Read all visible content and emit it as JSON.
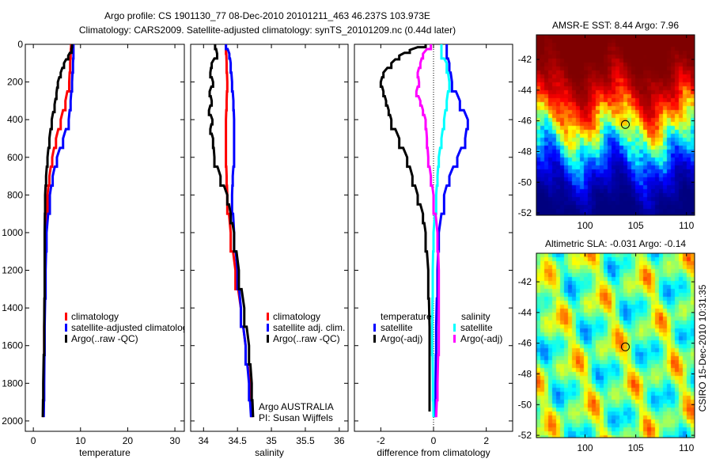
{
  "title_line1": "Argo profile: CS 1901130_77 08-Dec-2010 20101211_463 46.237S 103.973E",
  "title_line2": "Climatology: CARS2009. Satellite-adjusted climatology: synTS_20101209.nc (0.44d later)",
  "credit": "CSIRO 15-Dec-2010 10:31:35",
  "colors": {
    "climatology": "#ff0000",
    "satellite": "#0000ff",
    "argo": "#000000",
    "sal_satellite": "#00ffff",
    "sal_argo": "#ff00ff"
  },
  "chart_data": [
    {
      "type": "line",
      "id": "temp",
      "xlabel": "temperature",
      "ylabel": "",
      "xlim": [
        -1.7,
        32
      ],
      "ylim": [
        2055,
        0
      ],
      "xticks": [
        0,
        10,
        20,
        30
      ],
      "yticks": [
        0,
        200,
        400,
        600,
        800,
        1000,
        1200,
        1400,
        1600,
        1800,
        2000
      ],
      "legend": [
        "climatology",
        "satellite-adjusted climatology",
        "Argo(..raw -QC)"
      ],
      "series": [
        {
          "name": "climatology",
          "color": "#ff0000",
          "depth": [
            0,
            50,
            100,
            200,
            300,
            400,
            500,
            600,
            700,
            800,
            1000,
            1200,
            1500,
            1800,
            1980
          ],
          "values": [
            8.0,
            7.9,
            7.8,
            7.6,
            6.8,
            5.8,
            4.8,
            4.0,
            3.4,
            3.0,
            2.6,
            2.5,
            2.3,
            2.2,
            2.1
          ]
        },
        {
          "name": "satellite-adjusted climatology",
          "color": "#0000ff",
          "depth": [
            0,
            50,
            100,
            200,
            300,
            400,
            500,
            600,
            700,
            800,
            1000,
            1200,
            1500,
            1800,
            1980
          ],
          "values": [
            8.5,
            8.5,
            8.4,
            8.2,
            7.9,
            7.5,
            6.3,
            5.0,
            4.1,
            3.5,
            2.8,
            2.6,
            2.4,
            2.3,
            2.2
          ]
        },
        {
          "name": "Argo(..raw -QC)",
          "color": "#000000",
          "depth": [
            0,
            30,
            60,
            100,
            150,
            200,
            260,
            320,
            400,
            500,
            600,
            700,
            800,
            1000,
            1200,
            1500,
            1800,
            1980
          ],
          "values": [
            8.2,
            8.1,
            7.4,
            6.5,
            5.8,
            5.2,
            4.9,
            4.5,
            3.9,
            3.4,
            3.0,
            2.7,
            2.5,
            2.4,
            2.4,
            2.3,
            2.1,
            2.0
          ]
        }
      ]
    },
    {
      "type": "line",
      "id": "sal",
      "xlabel": "salinity",
      "ylabel": "",
      "xlim": [
        33.81,
        36.13
      ],
      "ylim": [
        2055,
        0
      ],
      "xticks": [
        34,
        34.5,
        35,
        35.5,
        36
      ],
      "yticks": [
        0,
        200,
        400,
        600,
        800,
        1000,
        1200,
        1400,
        1600,
        1800,
        2000
      ],
      "legend": [
        "climatology",
        "satellite adj. clim.",
        "Argo(..raw -QC)"
      ],
      "annotation": [
        "Argo AUSTRALIA",
        "PI: Susan Wijffels"
      ],
      "series": [
        {
          "name": "climatology",
          "color": "#ff0000",
          "depth": [
            0,
            100,
            200,
            300,
            400,
            500,
            600,
            700,
            800,
            1000,
            1200,
            1400,
            1600,
            1800,
            1980
          ],
          "values": [
            34.33,
            34.34,
            34.35,
            34.34,
            34.33,
            34.33,
            34.33,
            34.34,
            34.35,
            34.4,
            34.47,
            34.55,
            34.62,
            34.68,
            34.71
          ]
        },
        {
          "name": "satellite adj. clim.",
          "color": "#0000ff",
          "depth": [
            0,
            50,
            100,
            200,
            300,
            400,
            500,
            600,
            700,
            800,
            1000,
            1200,
            1400,
            1600,
            1800,
            1980
          ],
          "values": [
            34.33,
            34.38,
            34.4,
            34.42,
            34.44,
            34.45,
            34.45,
            34.45,
            34.43,
            34.42,
            34.45,
            34.5,
            34.55,
            34.62,
            34.67,
            34.7
          ]
        },
        {
          "name": "Argo(..raw -QC)",
          "color": "#000000",
          "depth": [
            0,
            50,
            100,
            150,
            200,
            250,
            300,
            350,
            400,
            450,
            500,
            600,
            700,
            800,
            900,
            1000,
            1200,
            1400,
            1600,
            1800,
            1980
          ],
          "values": [
            34.17,
            34.2,
            34.12,
            34.1,
            34.14,
            34.09,
            34.12,
            34.08,
            34.13,
            34.1,
            34.14,
            34.16,
            34.25,
            34.35,
            34.4,
            34.45,
            34.52,
            34.6,
            34.67,
            34.71,
            34.73
          ]
        }
      ]
    },
    {
      "type": "line",
      "id": "diff",
      "xlabel": "difference from climatology",
      "ylabel": "",
      "xlim": [
        -3,
        3
      ],
      "ylim": [
        2055,
        0
      ],
      "xticks": [
        -2,
        0,
        2
      ],
      "yticks": [
        0,
        200,
        400,
        600,
        800,
        1000,
        1200,
        1400,
        1600,
        1800,
        2000
      ],
      "legend_temp_title": "temperature",
      "legend_sal_title": "salinity",
      "legend": [
        "satellite",
        "Argo(-adj)",
        "satellite",
        "Argo(-adj)"
      ],
      "series": [
        {
          "name": "temperature satellite",
          "color": "#0000ff",
          "depth": [
            0,
            50,
            100,
            200,
            300,
            400,
            500,
            600,
            700,
            800,
            1000,
            1200,
            1500,
            1800,
            1980
          ],
          "values": [
            0.5,
            0.5,
            0.6,
            0.7,
            1.0,
            1.3,
            1.2,
            0.9,
            0.6,
            0.4,
            0.2,
            0.15,
            0.1,
            0.08,
            0.05
          ]
        },
        {
          "name": "temperature Argo(-adj)",
          "color": "#000000",
          "depth": [
            0,
            30,
            60,
            100,
            150,
            200,
            250,
            300,
            350,
            400,
            500,
            600,
            700,
            800,
            900,
            1000,
            1200,
            1500,
            1800,
            1950
          ],
          "values": [
            -0.3,
            -0.9,
            -1.3,
            -1.6,
            -1.9,
            -2.0,
            -1.9,
            -1.8,
            -1.7,
            -1.6,
            -1.3,
            -1.0,
            -0.8,
            -0.6,
            -0.4,
            -0.3,
            -0.2,
            -0.15,
            -0.15,
            -0.15
          ]
        },
        {
          "name": "salinity satellite",
          "color": "#00ffff",
          "depth": [
            0,
            50,
            100,
            200,
            300,
            400,
            500,
            600,
            700,
            800,
            1000,
            1200,
            1500,
            1800,
            1980
          ],
          "values": [
            0.3,
            0.3,
            0.5,
            0.6,
            0.5,
            0.4,
            0.3,
            0.2,
            0.15,
            0.1,
            0.0,
            -0.03,
            -0.05,
            -0.02,
            0.0
          ]
        },
        {
          "name": "salinity Argo(-adj)",
          "color": "#ff00ff",
          "depth": [
            0,
            50,
            100,
            150,
            200,
            250,
            300,
            350,
            400,
            500,
            600,
            700,
            800,
            1000,
            1200,
            1500,
            1800,
            1980
          ],
          "values": [
            -0.1,
            -0.4,
            -0.5,
            -0.6,
            -0.55,
            -0.65,
            -0.5,
            -0.4,
            -0.3,
            -0.25,
            -0.2,
            -0.1,
            0.0,
            0.15,
            0.2,
            0.2,
            0.15,
            0.1
          ]
        }
      ]
    },
    {
      "type": "heatmap",
      "id": "sst",
      "title": "AMSR-E SST: 8.44 Argo: 7.96",
      "xlim": [
        95.2,
        110.8
      ],
      "ylim": [
        -52.15,
        -40.4
      ],
      "xticks": [
        100,
        105,
        110
      ],
      "yticks": [
        -42,
        -44,
        -46,
        -48,
        -50,
        -52
      ],
      "marker": {
        "lon": 103.973,
        "lat": -46.237
      }
    },
    {
      "type": "heatmap",
      "id": "sla",
      "title": "Altimetric SLA: -0.031 Argo: -0.14",
      "xlim": [
        95.2,
        110.8
      ],
      "ylim": [
        -52.15,
        -40.14
      ],
      "xticks": [
        100,
        105,
        110
      ],
      "yticks": [
        -42,
        -44,
        -46,
        -48,
        -50,
        -52
      ],
      "marker": {
        "lon": 103.973,
        "lat": -46.237
      }
    }
  ]
}
